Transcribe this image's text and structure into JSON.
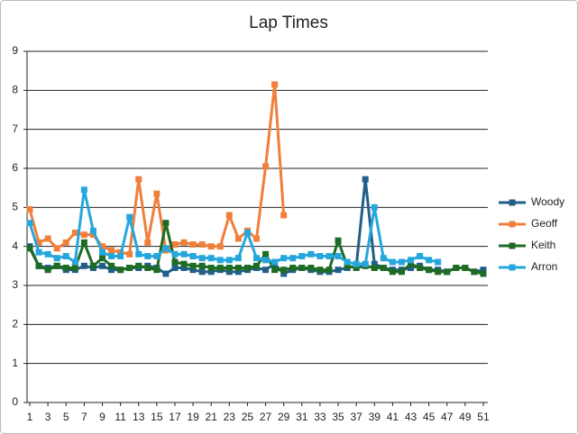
{
  "chart_data": {
    "type": "line",
    "title": "Lap Times",
    "x": [
      1,
      2,
      3,
      4,
      5,
      6,
      7,
      8,
      9,
      10,
      11,
      12,
      13,
      14,
      15,
      16,
      17,
      18,
      19,
      20,
      21,
      22,
      23,
      24,
      25,
      26,
      27,
      28,
      29,
      30,
      31,
      32,
      33,
      34,
      35,
      36,
      37,
      38,
      39,
      40,
      41,
      42,
      43,
      44,
      45,
      46,
      47,
      48,
      49,
      50,
      51
    ],
    "xlim": [
      0.7,
      51.5
    ],
    "xticks": [
      1,
      3,
      5,
      7,
      9,
      11,
      13,
      15,
      17,
      19,
      21,
      23,
      25,
      27,
      29,
      31,
      33,
      35,
      37,
      39,
      41,
      43,
      45,
      47,
      49,
      51
    ],
    "ylim": [
      0,
      9
    ],
    "yticks": [
      0,
      1,
      2,
      3,
      4,
      5,
      6,
      7,
      8,
      9
    ],
    "grid": true,
    "legend": "right",
    "series": [
      {
        "name": "Woody",
        "color": "#215f8a",
        "values": [
          4.0,
          3.5,
          3.45,
          3.5,
          3.4,
          3.4,
          3.5,
          3.45,
          3.5,
          3.4,
          3.4,
          3.45,
          3.45,
          3.5,
          3.45,
          3.3,
          3.45,
          3.45,
          3.4,
          3.35,
          3.35,
          3.4,
          3.35,
          3.35,
          3.4,
          3.45,
          3.4,
          3.55,
          3.3,
          3.4,
          3.45,
          3.4,
          3.35,
          3.35,
          3.4,
          3.45,
          3.5,
          5.72,
          3.55,
          3.45,
          3.4,
          3.4,
          3.45,
          3.5,
          3.4,
          3.4,
          3.35,
          3.45,
          3.45,
          3.35,
          3.4
        ]
      },
      {
        "name": "Geoff",
        "color": "#f07f3c",
        "values": [
          4.95,
          4.1,
          4.2,
          3.95,
          4.1,
          4.35,
          4.3,
          4.3,
          4.0,
          3.9,
          3.85,
          3.8,
          5.72,
          4.1,
          5.35,
          3.9,
          4.05,
          4.1,
          4.05,
          4.05,
          4.0,
          4.0,
          4.8,
          4.2,
          4.4,
          4.2,
          6.05,
          8.15,
          4.8,
          null,
          null,
          null,
          null,
          null,
          null,
          null,
          null,
          null,
          null,
          null,
          null,
          null,
          null,
          null,
          null,
          null,
          null,
          null,
          null,
          null,
          null
        ]
      },
      {
        "name": "Keith",
        "color": "#1e6b24",
        "values": [
          3.95,
          3.5,
          3.4,
          3.5,
          3.45,
          3.45,
          4.1,
          3.5,
          3.7,
          3.5,
          3.4,
          3.45,
          3.5,
          3.45,
          3.4,
          4.6,
          3.6,
          3.55,
          3.5,
          3.5,
          3.45,
          3.45,
          3.45,
          3.45,
          3.45,
          3.5,
          3.8,
          3.4,
          3.4,
          3.45,
          3.45,
          3.45,
          3.4,
          3.4,
          4.15,
          3.5,
          3.45,
          3.5,
          3.45,
          3.45,
          3.35,
          3.35,
          3.55,
          3.45,
          3.4,
          3.35,
          3.35,
          3.45,
          3.45,
          3.35,
          3.3
        ]
      },
      {
        "name": "Arron",
        "color": "#25a7dd",
        "values": [
          4.6,
          3.85,
          3.8,
          3.7,
          3.75,
          3.6,
          5.45,
          4.4,
          3.85,
          3.75,
          3.75,
          4.75,
          3.8,
          3.75,
          3.75,
          3.95,
          3.8,
          3.8,
          3.75,
          3.7,
          3.7,
          3.65,
          3.65,
          3.7,
          4.35,
          3.7,
          3.65,
          3.6,
          3.7,
          3.7,
          3.75,
          3.8,
          3.75,
          3.75,
          3.75,
          3.6,
          3.55,
          3.55,
          5.0,
          3.7,
          3.6,
          3.6,
          3.65,
          3.75,
          3.65,
          3.6,
          null,
          null,
          null,
          null,
          null
        ]
      }
    ]
  }
}
